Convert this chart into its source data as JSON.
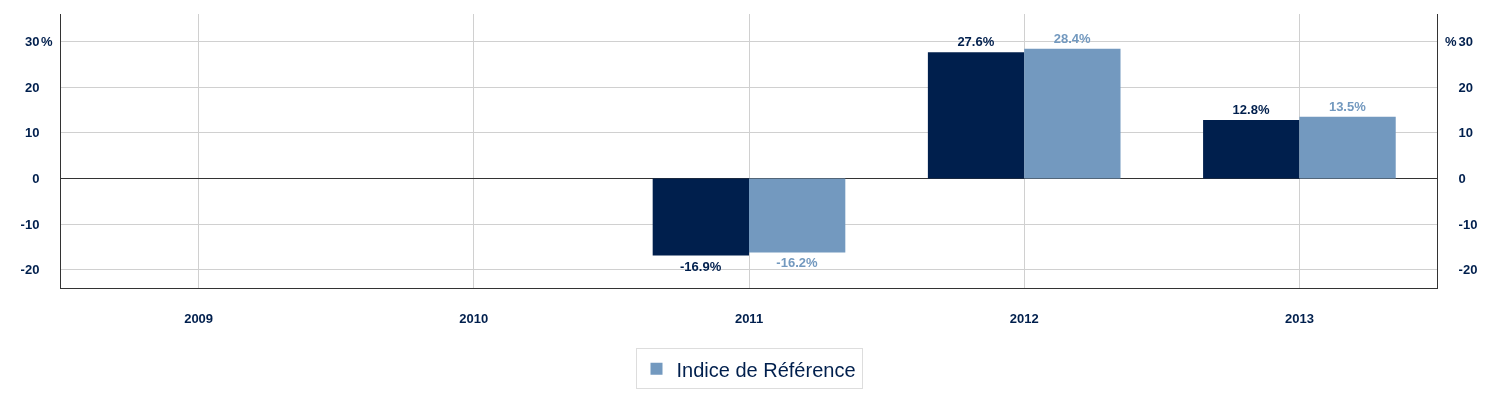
{
  "chart_data": {
    "type": "bar",
    "categories": [
      "2009",
      "2010",
      "2011",
      "2012",
      "2013"
    ],
    "series": [
      {
        "color": "#001f4d",
        "values": [
          null,
          null,
          -16.9,
          27.6,
          12.8
        ],
        "value_labels": [
          null,
          null,
          "-16.9%",
          "27.6%",
          "12.8%"
        ]
      },
      {
        "name": "Indice de Référence",
        "color": "#7399bf",
        "values": [
          null,
          null,
          -16.2,
          28.4,
          13.5
        ],
        "value_labels": [
          null,
          null,
          "-16.2%",
          "28.4%",
          "13.5%"
        ]
      }
    ],
    "ylabel": "%",
    "y2label": "%",
    "ylim": [
      -24,
      36
    ],
    "yticks": [
      -20,
      -10,
      0,
      10,
      20,
      30
    ],
    "y2lim": [
      -24,
      36
    ],
    "y2ticks": [
      -20,
      -10,
      0,
      10,
      20,
      30
    ],
    "grid": true,
    "legend": "bottom"
  }
}
